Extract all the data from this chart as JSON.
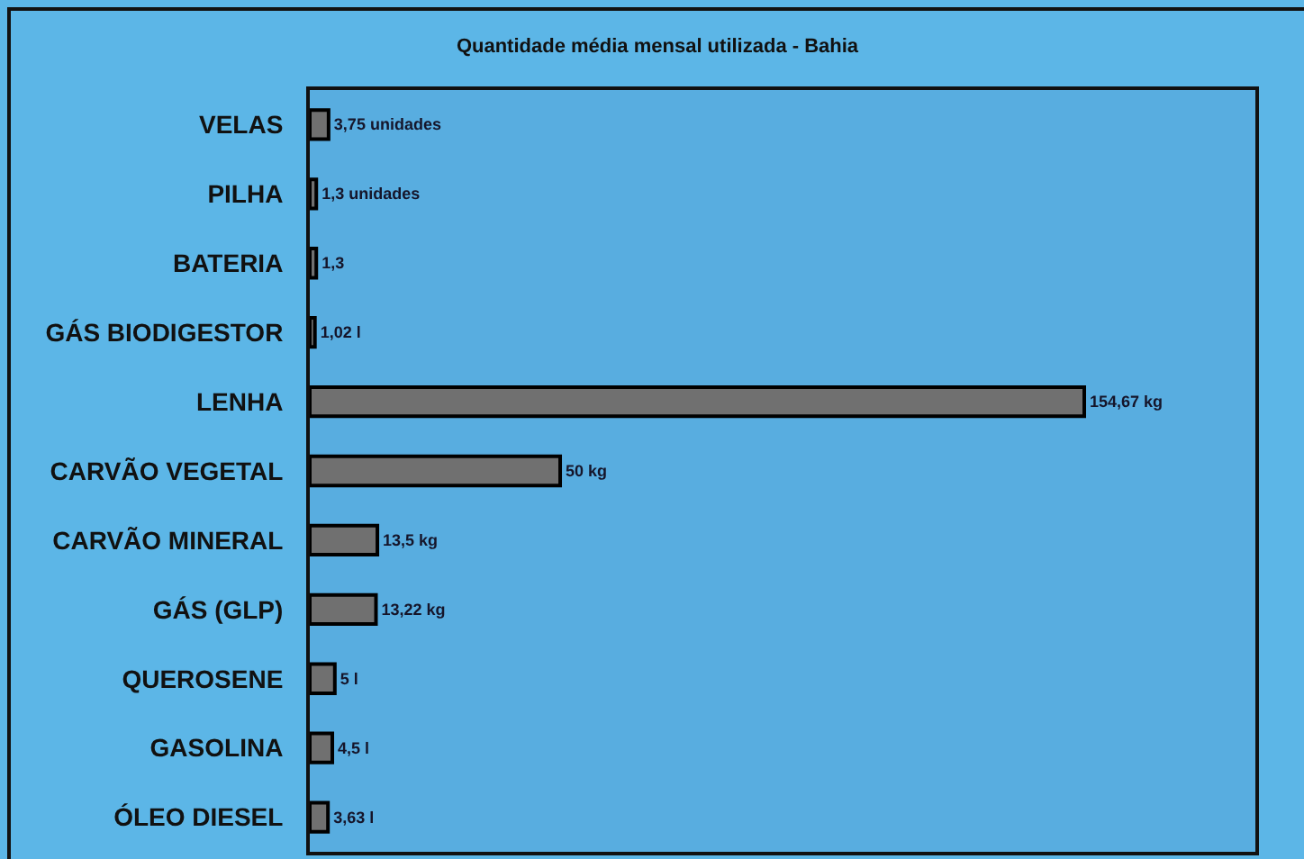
{
  "chart_data": {
    "type": "bar",
    "orientation": "horizontal",
    "title": "Quantidade média mensal utilizada - Bahia",
    "categories": [
      "VELAS",
      "PILHA",
      "BATERIA",
      "GÁS BIODIGESTOR",
      "LENHA",
      "CARVÃO VEGETAL",
      "CARVÃO MINERAL",
      "GÁS (GLP)",
      "QUEROSENE",
      "GASOLINA",
      "ÓLEO DIESEL"
    ],
    "values": [
      3.75,
      1.3,
      1.3,
      1.02,
      154.67,
      50,
      13.5,
      13.22,
      5,
      4.5,
      3.63
    ],
    "value_labels": [
      "3,75 unidades",
      "1,3 unidades",
      "1,3",
      "1,02 l",
      "154,67 kg",
      "50 kg",
      "13,5 kg",
      "13,22 kg",
      "5 l",
      "4,5 l",
      "3,63 l"
    ],
    "color": "#707070",
    "tick_labels": "y"
  }
}
